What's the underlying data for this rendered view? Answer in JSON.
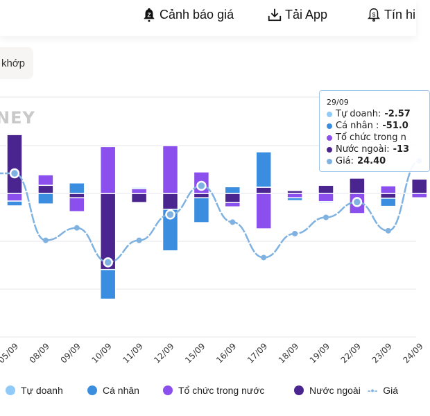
{
  "header": {
    "nav": [
      {
        "label": "Cảnh báo giá",
        "icon": "bell-alert-icon"
      },
      {
        "label": "Tải App",
        "icon": "download-icon"
      },
      {
        "label": "Tín hi",
        "icon": "bell-dollar-icon"
      }
    ]
  },
  "filter_button": {
    "label": "khớp"
  },
  "watermark": "NEY",
  "tooltip": {
    "date": "29/09",
    "rows": [
      {
        "label": "Tự doanh: ",
        "value": "-2.57",
        "color": "#90caf9"
      },
      {
        "label": "Cá nhân : ",
        "value": "-51.0",
        "color": "#3b8de0"
      },
      {
        "label": "Tổ chức trong n",
        "value": "",
        "color": "#8a4fec"
      },
      {
        "label": "Nước ngoài: ",
        "value": "-13",
        "color": "#4a2590"
      },
      {
        "label": "Giá: ",
        "value": "24.40",
        "color": "#7fb2e0"
      }
    ]
  },
  "chart_data": {
    "type": "bar",
    "stacked": true,
    "grid": true,
    "legend_placement": "bottom",
    "categories": [
      "05/09",
      "08/09",
      "09/09",
      "10/09",
      "11/09",
      "12/09",
      "15/09",
      "16/09",
      "17/09",
      "18/09",
      "19/09",
      "22/09",
      "23/09",
      "24/09"
    ],
    "series": [
      {
        "name": "Tự doanh",
        "color": "#90caf9",
        "values": [
          0,
          0,
          0,
          0,
          3,
          0,
          0,
          0,
          0,
          0,
          -3,
          0,
          0,
          0
        ]
      },
      {
        "name": "Cá nhân",
        "color": "#3b8de0",
        "values": [
          -10,
          -22,
          22,
          -62,
          0,
          -87,
          -52,
          14,
          74,
          -6,
          0,
          0,
          -17,
          0
        ]
      },
      {
        "name": "Tổ chức trong nước",
        "color": "#8a4fec",
        "values": [
          -16,
          22,
          -29,
          98,
          10,
          100,
          45,
          -9,
          -74,
          -9,
          -17,
          -42,
          16,
          -9
        ]
      },
      {
        "name": "Nước ngoài",
        "color": "#4a2590",
        "values": [
          123,
          17,
          -9,
          -159,
          -19,
          -33,
          -9,
          -19,
          13,
          6,
          17,
          32,
          -10,
          30
        ]
      },
      {
        "name": "Giá",
        "type": "line",
        "color": "#7fb2e0",
        "values": [
          23.71,
          23.01,
          23.14,
          22.78,
          23.01,
          23.28,
          23.58,
          23.2,
          22.83,
          23.08,
          23.25,
          23.41,
          23.11,
          23.84
        ]
      }
    ]
  }
}
